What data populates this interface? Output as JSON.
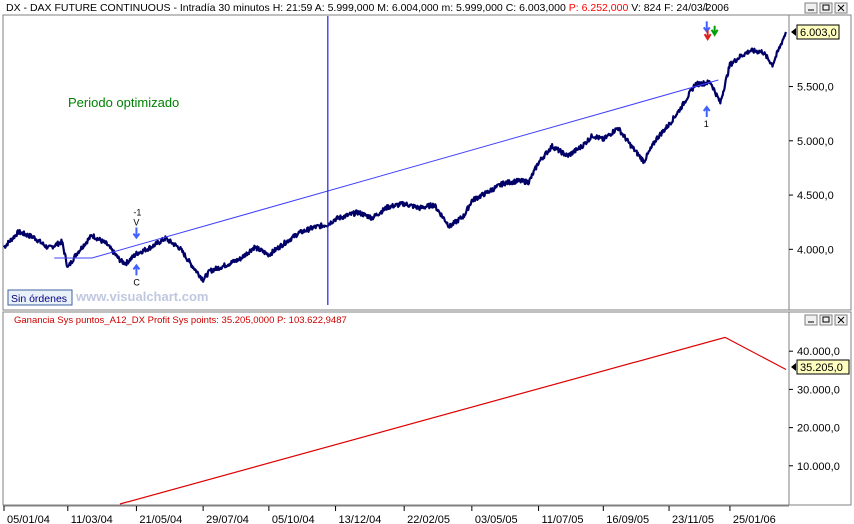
{
  "top_panel": {
    "header": {
      "symbol": "DX",
      "name": "DAX FUTURE CONTINUOUS",
      "interval": "Intradía 30 minutos",
      "hour_label": "H:",
      "hour": "21:59",
      "open_label": "A:",
      "open": "5.999,000",
      "high_label": "M:",
      "high": "6.004,000",
      "low_label": "m:",
      "low": "5.999,000",
      "close_label": "C:",
      "close": "6.003,000",
      "profit_label": "P:",
      "profit": "6.252,000",
      "volume_label": "V:",
      "volume": "824",
      "date_label": "F:",
      "date": "24/03/2006"
    },
    "annotation_text": "Periodo optimizado",
    "status_box": "Sin órdenes",
    "watermark": "www.visualchart.com",
    "last_price": "6.003,0",
    "y_ticks": [
      "4.000,0",
      "4.500,0",
      "5.000,0",
      "5.500,0"
    ],
    "trade_marks": [
      {
        "label": "-1",
        "label_b": "V",
        "x": 13,
        "y": 4090,
        "dir": "down"
      },
      {
        "label": "C",
        "x": 13,
        "y": 3870,
        "dir": "up"
      },
      {
        "label": "1",
        "x": 135,
        "y": 5330,
        "dir": "up"
      },
      {
        "label": "1",
        "x": 136,
        "y": 5990,
        "dir": "down"
      }
    ]
  },
  "bottom_panel": {
    "indicator_name": "Ganancia Sys puntos_A12_DX",
    "profit_label": "Profit Sys points:",
    "profit_value": "35.205,0000",
    "p_label": "P:",
    "p_value": "103.622,9487",
    "last_value": "35.205,0",
    "y_ticks": [
      "10.000,0",
      "20.000,0",
      "30.000,0",
      "40.000,0"
    ]
  },
  "x_axis": {
    "ticks": [
      "05/01/04",
      "11/03/04",
      "21/05/04",
      "29/07/04",
      "05/10/04",
      "13/12/04",
      "22/02/05",
      "03/05/05",
      "11/07/05",
      "16/09/05",
      "23/11/05",
      "25/01/06"
    ]
  },
  "colors": {
    "price": "#000066",
    "trend_line": "#4040ff",
    "indicator": "#dd0000",
    "annotation": "#008000",
    "header_red": "#ff0000",
    "last_price_box": "#ffffc0"
  },
  "chart_data": [
    {
      "type": "line",
      "title": "DX - DAX FUTURE CONTINUOUS - Intradía 30 minutos",
      "x_type": "date",
      "xlim": [
        "2004-01-05",
        "2006-03-24"
      ],
      "ylim": [
        3450,
        6150
      ],
      "y_ticks": [
        4000,
        4500,
        5000,
        5500
      ],
      "grid": false,
      "series": [
        {
          "name": "DX",
          "x": [
            "2004-01-05",
            "2004-01-20",
            "2004-02-05",
            "2004-02-20",
            "2004-03-05",
            "2004-03-11",
            "2004-03-20",
            "2004-04-05",
            "2004-04-20",
            "2004-05-05",
            "2004-05-10",
            "2004-05-21",
            "2004-06-05",
            "2004-06-20",
            "2004-07-05",
            "2004-07-15",
            "2004-07-29",
            "2004-08-05",
            "2004-08-20",
            "2004-09-05",
            "2004-09-20",
            "2004-10-05",
            "2004-10-20",
            "2004-11-05",
            "2004-11-20",
            "2004-12-05",
            "2004-12-13",
            "2005-01-05",
            "2005-01-20",
            "2005-02-05",
            "2005-02-22",
            "2005-03-10",
            "2005-03-25",
            "2005-04-10",
            "2005-04-25",
            "2005-05-03",
            "2005-05-20",
            "2005-06-05",
            "2005-06-20",
            "2005-07-01",
            "2005-07-11",
            "2005-07-25",
            "2005-08-10",
            "2005-08-25",
            "2005-09-05",
            "2005-09-16",
            "2005-10-01",
            "2005-10-15",
            "2005-10-28",
            "2005-11-10",
            "2005-11-23",
            "2005-12-05",
            "2005-12-20",
            "2006-01-05",
            "2006-01-15",
            "2006-01-25",
            "2006-02-05",
            "2006-02-15",
            "2006-02-28",
            "2006-03-10",
            "2006-03-24"
          ],
          "y": [
            4020,
            4160,
            4110,
            4010,
            4070,
            3830,
            3960,
            4130,
            4050,
            3890,
            3870,
            3960,
            4020,
            4100,
            4010,
            3880,
            3720,
            3800,
            3850,
            3910,
            4020,
            3950,
            4050,
            4150,
            4200,
            4230,
            4280,
            4340,
            4290,
            4390,
            4420,
            4380,
            4410,
            4210,
            4310,
            4450,
            4530,
            4610,
            4630,
            4620,
            4800,
            4950,
            4860,
            4950,
            5050,
            5010,
            5120,
            4950,
            4810,
            5020,
            5150,
            5300,
            5520,
            5540,
            5350,
            5700,
            5780,
            5830,
            5820,
            5700,
            6003
          ]
        }
      ],
      "trend_line": {
        "x": [
          "2004-04-05",
          "2006-01-13"
        ],
        "y": [
          3920,
          5560
        ]
      },
      "vertical_marker": "2004-12-05",
      "annotations": [
        "Periodo optimizado",
        "Sin órdenes"
      ]
    },
    {
      "type": "line",
      "title": "Ganancia Sys puntos_A12_DX",
      "x_type": "date",
      "xlim": [
        "2004-01-05",
        "2006-03-24"
      ],
      "ylim": [
        0,
        50000
      ],
      "y_ticks": [
        10000,
        20000,
        30000,
        40000
      ],
      "grid": false,
      "series": [
        {
          "name": "Ganancia Sys puntos_A12_DX",
          "x": [
            "2004-05-04",
            "2006-01-20",
            "2006-03-24"
          ],
          "y": [
            0,
            43600,
            35205
          ]
        }
      ]
    }
  ]
}
